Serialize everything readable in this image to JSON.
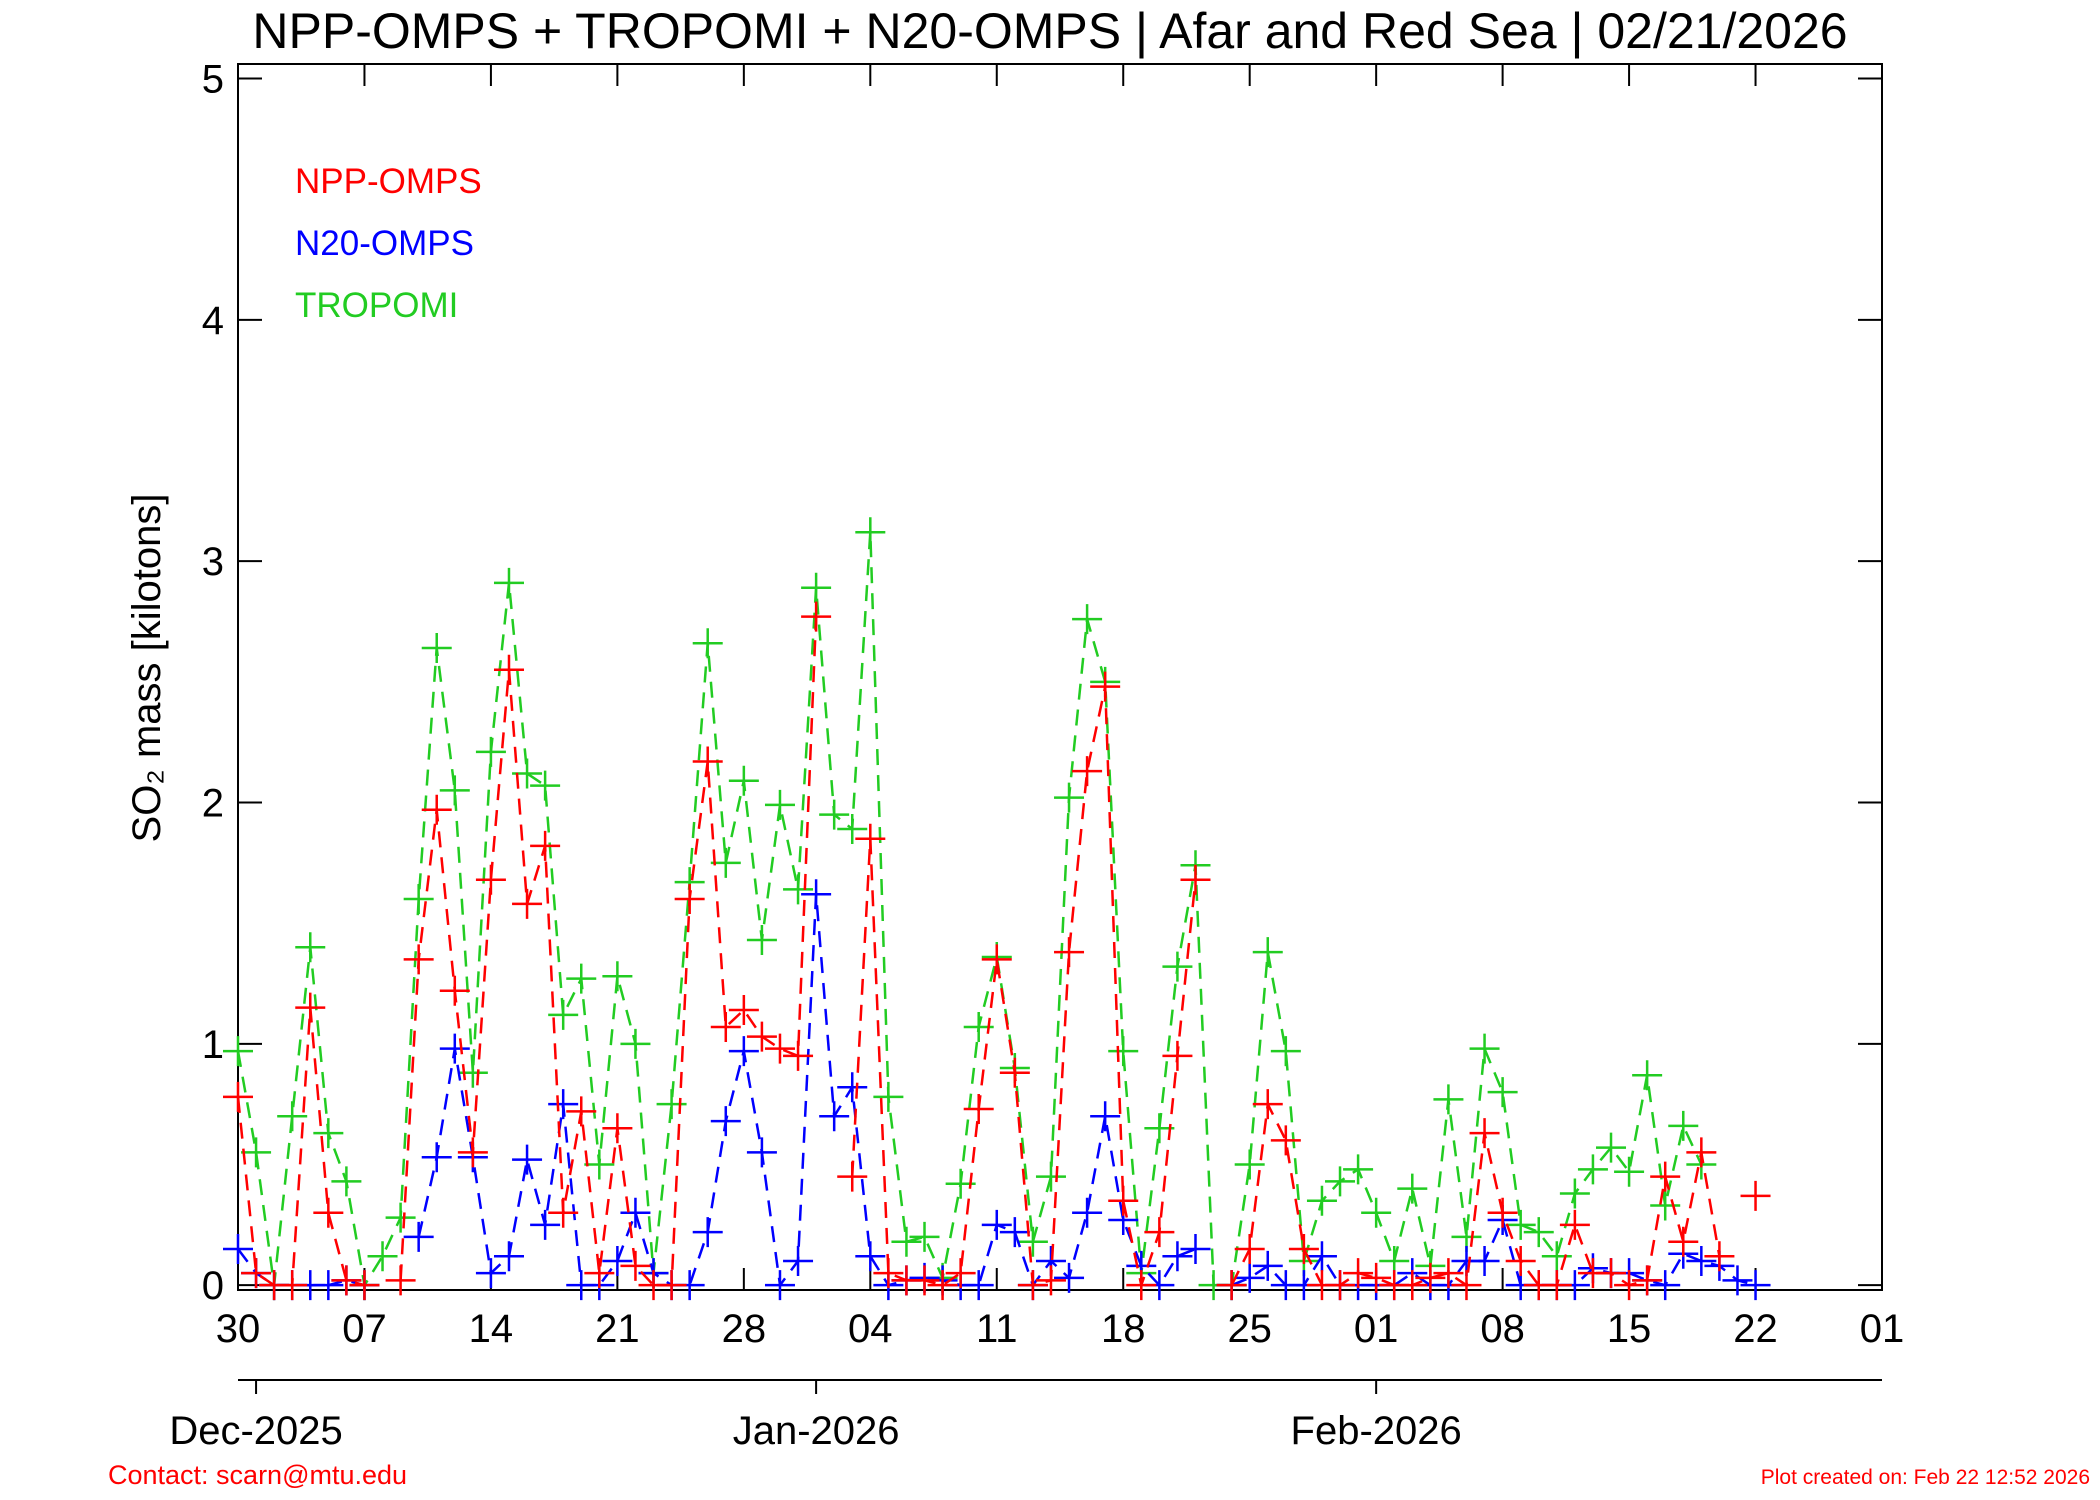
{
  "chart_data": {
    "type": "line",
    "title": "NPP-OMPS + TROPOMI + N20-OMPS | Afar and Red Sea | 02/21/2026",
    "ylabel": "SO₂ mass [kilotons]",
    "x": [
      "2025-11-30",
      "2025-12-01",
      "2025-12-02",
      "2025-12-03",
      "2025-12-04",
      "2025-12-05",
      "2025-12-06",
      "2025-12-07",
      "2025-12-08",
      "2025-12-09",
      "2025-12-10",
      "2025-12-11",
      "2025-12-12",
      "2025-12-13",
      "2025-12-14",
      "2025-12-15",
      "2025-12-16",
      "2025-12-17",
      "2025-12-18",
      "2025-12-19",
      "2025-12-20",
      "2025-12-21",
      "2025-12-22",
      "2025-12-23",
      "2025-12-24",
      "2025-12-25",
      "2025-12-26",
      "2025-12-27",
      "2025-12-28",
      "2025-12-29",
      "2025-12-30",
      "2025-12-31",
      "2026-01-01",
      "2026-01-02",
      "2026-01-03",
      "2026-01-04",
      "2026-01-05",
      "2026-01-06",
      "2026-01-07",
      "2026-01-08",
      "2026-01-09",
      "2026-01-10",
      "2026-01-11",
      "2026-01-12",
      "2026-01-13",
      "2026-01-14",
      "2026-01-15",
      "2026-01-16",
      "2026-01-17",
      "2026-01-18",
      "2026-01-19",
      "2026-01-20",
      "2026-01-21",
      "2026-01-22",
      "2026-01-23",
      "2026-01-24",
      "2026-01-25",
      "2026-01-26",
      "2026-01-27",
      "2026-01-28",
      "2026-01-29",
      "2026-01-30",
      "2026-01-31",
      "2026-02-01",
      "2026-02-02",
      "2026-02-03",
      "2026-02-04",
      "2026-02-05",
      "2026-02-06",
      "2026-02-07",
      "2026-02-08",
      "2026-02-09",
      "2026-02-10",
      "2026-02-11",
      "2026-02-12",
      "2026-02-13",
      "2026-02-14",
      "2026-02-15",
      "2026-02-16",
      "2026-02-17",
      "2026-02-18",
      "2026-02-19",
      "2026-02-20",
      "2026-02-21",
      "2026-02-22"
    ],
    "series": [
      {
        "name": "NPP-OMPS",
        "color": "#ff0000",
        "values": [
          0.78,
          0.05,
          0.0,
          0.0,
          1.15,
          0.3,
          0.02,
          0.0,
          null,
          0.02,
          1.35,
          1.97,
          1.22,
          0.55,
          1.68,
          2.55,
          1.58,
          1.82,
          0.3,
          0.72,
          0.05,
          0.65,
          0.08,
          0.0,
          0.0,
          1.6,
          2.17,
          1.07,
          1.14,
          1.03,
          0.98,
          0.95,
          2.77,
          null,
          0.45,
          1.85,
          0.05,
          0.02,
          0.02,
          0.0,
          0.05,
          0.73,
          1.35,
          0.88,
          0.0,
          0.02,
          1.38,
          2.13,
          2.48,
          0.35,
          0.0,
          0.22,
          0.95,
          1.68,
          null,
          0.0,
          0.15,
          0.75,
          0.6,
          0.15,
          0.0,
          0.0,
          0.05,
          0.03,
          0.0,
          0.0,
          0.03,
          0.05,
          0.0,
          0.63,
          0.3,
          0.1,
          0.0,
          0.0,
          0.25,
          0.05,
          0.05,
          0.0,
          0.02,
          0.45,
          0.18,
          0.55,
          0.12,
          null,
          0.37
        ]
      },
      {
        "name": "N20-OMPS",
        "color": "#0000ff",
        "values": [
          0.15,
          0.05,
          0.0,
          0.0,
          0.0,
          0.0,
          0.02,
          0.0,
          null,
          null,
          0.2,
          0.53,
          0.98,
          0.53,
          0.05,
          0.12,
          0.52,
          0.25,
          0.75,
          0.0,
          0.0,
          0.1,
          0.3,
          0.05,
          0.0,
          0.0,
          0.22,
          0.68,
          0.97,
          0.55,
          0.0,
          0.1,
          1.62,
          0.7,
          0.82,
          0.12,
          0.0,
          0.02,
          0.03,
          0.02,
          0.0,
          0.0,
          0.25,
          0.22,
          0.0,
          0.1,
          0.03,
          0.3,
          0.7,
          0.27,
          0.08,
          0.0,
          0.12,
          0.15,
          null,
          0.0,
          0.03,
          0.08,
          0.0,
          0.0,
          0.12,
          0.0,
          0.0,
          0.0,
          0.0,
          0.05,
          0.0,
          0.0,
          0.1,
          0.1,
          0.27,
          0.0,
          0.0,
          0.0,
          0.0,
          0.07,
          0.05,
          0.05,
          0.02,
          0.0,
          0.13,
          0.1,
          0.08,
          0.02,
          0.0
        ]
      },
      {
        "name": "TROPOMI",
        "color": "#22cc22",
        "values": [
          0.97,
          0.55,
          0.0,
          0.7,
          1.4,
          0.63,
          0.43,
          0.0,
          0.12,
          0.28,
          1.6,
          2.64,
          2.05,
          0.88,
          2.21,
          2.91,
          2.12,
          2.07,
          1.12,
          1.27,
          0.5,
          1.28,
          1.0,
          0.05,
          0.75,
          1.67,
          2.66,
          1.75,
          2.09,
          1.43,
          1.99,
          1.64,
          2.89,
          1.95,
          1.89,
          3.12,
          0.78,
          0.18,
          0.2,
          0.03,
          0.42,
          1.07,
          1.36,
          0.9,
          0.18,
          0.45,
          2.02,
          2.76,
          2.5,
          0.97,
          0.05,
          0.65,
          1.32,
          1.74,
          0.0,
          0.0,
          0.5,
          1.38,
          0.97,
          0.1,
          0.35,
          0.43,
          0.48,
          0.3,
          0.1,
          0.4,
          0.08,
          0.77,
          0.2,
          0.98,
          0.8,
          0.25,
          0.22,
          0.12,
          0.38,
          0.48,
          0.57,
          0.47,
          0.87,
          0.33,
          0.66,
          0.5,
          null,
          null,
          null
        ]
      }
    ],
    "xlim": [
      "2025-11-30",
      "2026-03-01"
    ],
    "xticks": [
      {
        "value": "2025-11-30",
        "label": "30"
      },
      {
        "value": "2025-12-07",
        "label": "07"
      },
      {
        "value": "2025-12-14",
        "label": "14"
      },
      {
        "value": "2025-12-21",
        "label": "21"
      },
      {
        "value": "2025-12-28",
        "label": "28"
      },
      {
        "value": "2026-01-04",
        "label": "04"
      },
      {
        "value": "2026-01-11",
        "label": "11"
      },
      {
        "value": "2026-01-18",
        "label": "18"
      },
      {
        "value": "2026-01-25",
        "label": "25"
      },
      {
        "value": "2026-02-01",
        "label": "01"
      },
      {
        "value": "2026-02-08",
        "label": "08"
      },
      {
        "value": "2026-02-15",
        "label": "15"
      },
      {
        "value": "2026-02-22",
        "label": "22"
      },
      {
        "value": "2026-03-01",
        "label": "01"
      }
    ],
    "month_ticks": [
      {
        "value": "2025-12-01",
        "label": "Dec-2025"
      },
      {
        "value": "2026-01-01",
        "label": "Jan-2026"
      },
      {
        "value": "2026-02-01",
        "label": "Feb-2026"
      }
    ],
    "ylim": [
      -0.02,
      5.06
    ],
    "yticks": [
      0,
      1,
      2,
      3,
      4,
      5
    ],
    "legend_position": "upper left",
    "footer_left": "Contact: scarn@mtu.edu",
    "footer_right": "Plot created on: Feb 22 12:52 2026"
  }
}
